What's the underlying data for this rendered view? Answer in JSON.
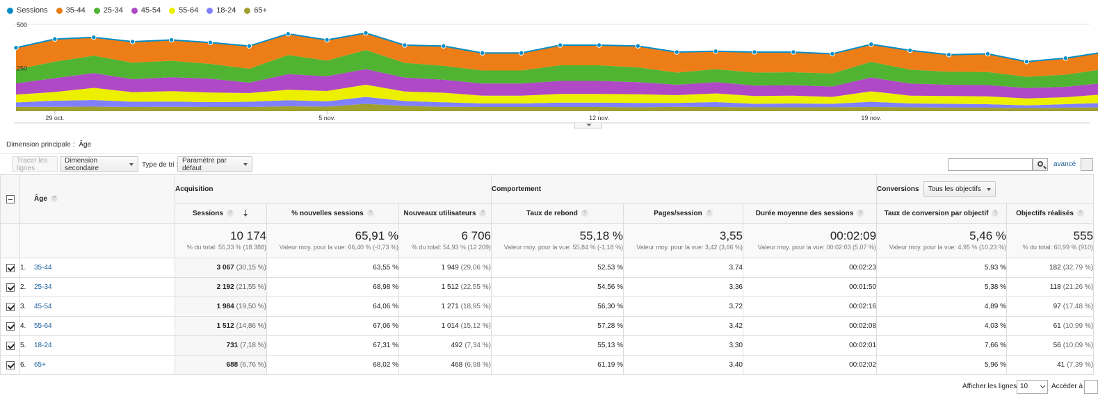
{
  "legend": [
    {
      "label": "Sessions",
      "color": "#058dc7"
    },
    {
      "label": "35-44",
      "color": "#ed7e17"
    },
    {
      "label": "25-34",
      "color": "#50b432"
    },
    {
      "label": "45-54",
      "color": "#af49c5"
    },
    {
      "label": "55-64",
      "color": "#edef00"
    },
    {
      "label": "18-24",
      "color": "#8080ff"
    },
    {
      "label": "65+",
      "color": "#a0a030"
    }
  ],
  "chart_data": {
    "type": "area",
    "stacked": true,
    "y_ticks": [
      "500",
      "250"
    ],
    "ylim": [
      0,
      500
    ],
    "x_tick_labels": [
      "29 oct.",
      "5 nov.",
      "12 nov.",
      "19 nov."
    ],
    "x_tick_index": [
      1,
      8,
      15,
      22
    ],
    "sessions_line": [
      365,
      415,
      425,
      400,
      410,
      395,
      375,
      445,
      410,
      450,
      380,
      375,
      335,
      335,
      380,
      380,
      375,
      340,
      345,
      340,
      340,
      330,
      385,
      350,
      325,
      330,
      285,
      305,
      340
    ],
    "series": [
      {
        "name": "65+",
        "color": "#a0a030",
        "values": [
          25,
          25,
          26,
          24,
          25,
          24,
          24,
          28,
          26,
          42,
          30,
          25,
          24,
          24,
          24,
          24,
          22,
          25,
          24,
          22,
          22,
          22,
          24,
          22,
          20,
          20,
          18,
          20,
          22
        ]
      },
      {
        "name": "18-24",
        "color": "#8080ff",
        "values": [
          25,
          35,
          38,
          30,
          30,
          28,
          30,
          35,
          30,
          40,
          28,
          26,
          20,
          20,
          25,
          25,
          25,
          22,
          28,
          20,
          22,
          20,
          30,
          22,
          22,
          20,
          15,
          20,
          25
        ]
      },
      {
        "name": "55-64",
        "color": "#edef00",
        "values": [
          45,
          50,
          70,
          55,
          60,
          55,
          50,
          60,
          60,
          70,
          55,
          55,
          45,
          45,
          50,
          50,
          50,
          45,
          50,
          45,
          45,
          40,
          60,
          45,
          45,
          45,
          40,
          40,
          50
        ]
      },
      {
        "name": "45-54",
        "color": "#af49c5",
        "values": [
          65,
          80,
          85,
          75,
          80,
          80,
          60,
          90,
          85,
          90,
          80,
          75,
          70,
          70,
          75,
          75,
          70,
          60,
          65,
          60,
          60,
          60,
          80,
          70,
          65,
          65,
          60,
          60,
          65
        ]
      },
      {
        "name": "25-34",
        "color": "#50b432",
        "values": [
          80,
          95,
          100,
          95,
          95,
          85,
          80,
          110,
          90,
          110,
          85,
          80,
          75,
          75,
          90,
          90,
          85,
          70,
          75,
          75,
          75,
          75,
          90,
          80,
          75,
          75,
          65,
          70,
          80
        ]
      },
      {
        "name": "35-44",
        "color": "#ed7e17",
        "values": [
          125,
          130,
          106,
          121,
          120,
          123,
          131,
          122,
          119,
          98,
          102,
          114,
          101,
          101,
          116,
          116,
          123,
          118,
          103,
          118,
          116,
          113,
          101,
          111,
          98,
          105,
          87,
          95,
          98
        ]
      }
    ]
  },
  "dimension": {
    "label": "Dimension principale :",
    "value": "Âge"
  },
  "toolbar": {
    "plot_rows": "Tracer les lignes",
    "secondary_dimension": "Dimension secondaire",
    "sort_type_label": "Type de tri :",
    "sort_default": "Paramètre par défaut",
    "search_value": "",
    "advanced": "avancé"
  },
  "table": {
    "age_header": "Âge",
    "groups": {
      "acquisition": "Acquisition",
      "behavior": "Comportement",
      "conversions": "Conversions",
      "conversions_select": "Tous les objectifs"
    },
    "columns": [
      "Sessions",
      "% nouvelles sessions",
      "Nouveaux utilisateurs",
      "Taux de rebond",
      "Pages/session",
      "Durée moyenne des sessions",
      "Taux de conversion par objectif",
      "Objectifs réalisés"
    ],
    "totals": [
      {
        "value": "10 174",
        "sub": "% du total: 55,33 % (18 388)"
      },
      {
        "value": "65,91 %",
        "sub": "Valeur moy. pour la vue: 66,40 % (-0,73 %)"
      },
      {
        "value": "6 706",
        "sub": "% du total: 54,93 % (12 209)"
      },
      {
        "value": "55,18 %",
        "sub": "Valeur moy. pour la vue: 55,84 % (-1,18 %)"
      },
      {
        "value": "3,55",
        "sub": "Valeur moy. pour la vue: 3,42 (3,66 %)"
      },
      {
        "value": "00:02:09",
        "sub": "Valeur moy. pour la vue: 00:02:03 (5,07 %)"
      },
      {
        "value": "5,46 %",
        "sub": "Valeur moy. pour la vue: 4,95 % (10,23 %)"
      },
      {
        "value": "555",
        "sub": "% du total: 60,99 % (910)"
      }
    ],
    "rows": [
      {
        "num": "1.",
        "age": "35-44",
        "sessions": "3 067",
        "sessions_pct": "(30,15 %)",
        "new_sessions": "63,55 %",
        "new_users": "1 949",
        "new_users_pct": "(29,06 %)",
        "bounce": "52,53 %",
        "pages": "3,74",
        "duration": "00:02:23",
        "conv_rate": "5,93 %",
        "goals": "182",
        "goals_pct": "(32,79 %)"
      },
      {
        "num": "2.",
        "age": "25-34",
        "sessions": "2 192",
        "sessions_pct": "(21,55 %)",
        "new_sessions": "68,98 %",
        "new_users": "1 512",
        "new_users_pct": "(22,55 %)",
        "bounce": "54,56 %",
        "pages": "3,36",
        "duration": "00:01:50",
        "conv_rate": "5,38 %",
        "goals": "118",
        "goals_pct": "(21,26 %)"
      },
      {
        "num": "3.",
        "age": "45-54",
        "sessions": "1 984",
        "sessions_pct": "(19,50 %)",
        "new_sessions": "64,06 %",
        "new_users": "1 271",
        "new_users_pct": "(18,95 %)",
        "bounce": "56,30 %",
        "pages": "3,72",
        "duration": "00:02:16",
        "conv_rate": "4,89 %",
        "goals": "97",
        "goals_pct": "(17,48 %)"
      },
      {
        "num": "4.",
        "age": "55-64",
        "sessions": "1 512",
        "sessions_pct": "(14,86 %)",
        "new_sessions": "67,06 %",
        "new_users": "1 014",
        "new_users_pct": "(15,12 %)",
        "bounce": "57,28 %",
        "pages": "3,42",
        "duration": "00:02:08",
        "conv_rate": "4,03 %",
        "goals": "61",
        "goals_pct": "(10,99 %)"
      },
      {
        "num": "5.",
        "age": "18-24",
        "sessions": "731",
        "sessions_pct": "(7,18 %)",
        "new_sessions": "67,31 %",
        "new_users": "492",
        "new_users_pct": "(7,34 %)",
        "bounce": "55,13 %",
        "pages": "3,30",
        "duration": "00:02:01",
        "conv_rate": "7,66 %",
        "goals": "56",
        "goals_pct": "(10,09 %)"
      },
      {
        "num": "6.",
        "age": "65+",
        "sessions": "688",
        "sessions_pct": "(6,76 %)",
        "new_sessions": "68,02 %",
        "new_users": "468",
        "new_users_pct": "(6,98 %)",
        "bounce": "61,19 %",
        "pages": "3,40",
        "duration": "00:02:02",
        "conv_rate": "5,96 %",
        "goals": "41",
        "goals_pct": "(7,39 %)"
      }
    ]
  },
  "footer": {
    "show_rows_label": "Afficher les lignes :",
    "show_rows_value": "10",
    "goto_label": "Accéder à :",
    "goto_value": ""
  }
}
